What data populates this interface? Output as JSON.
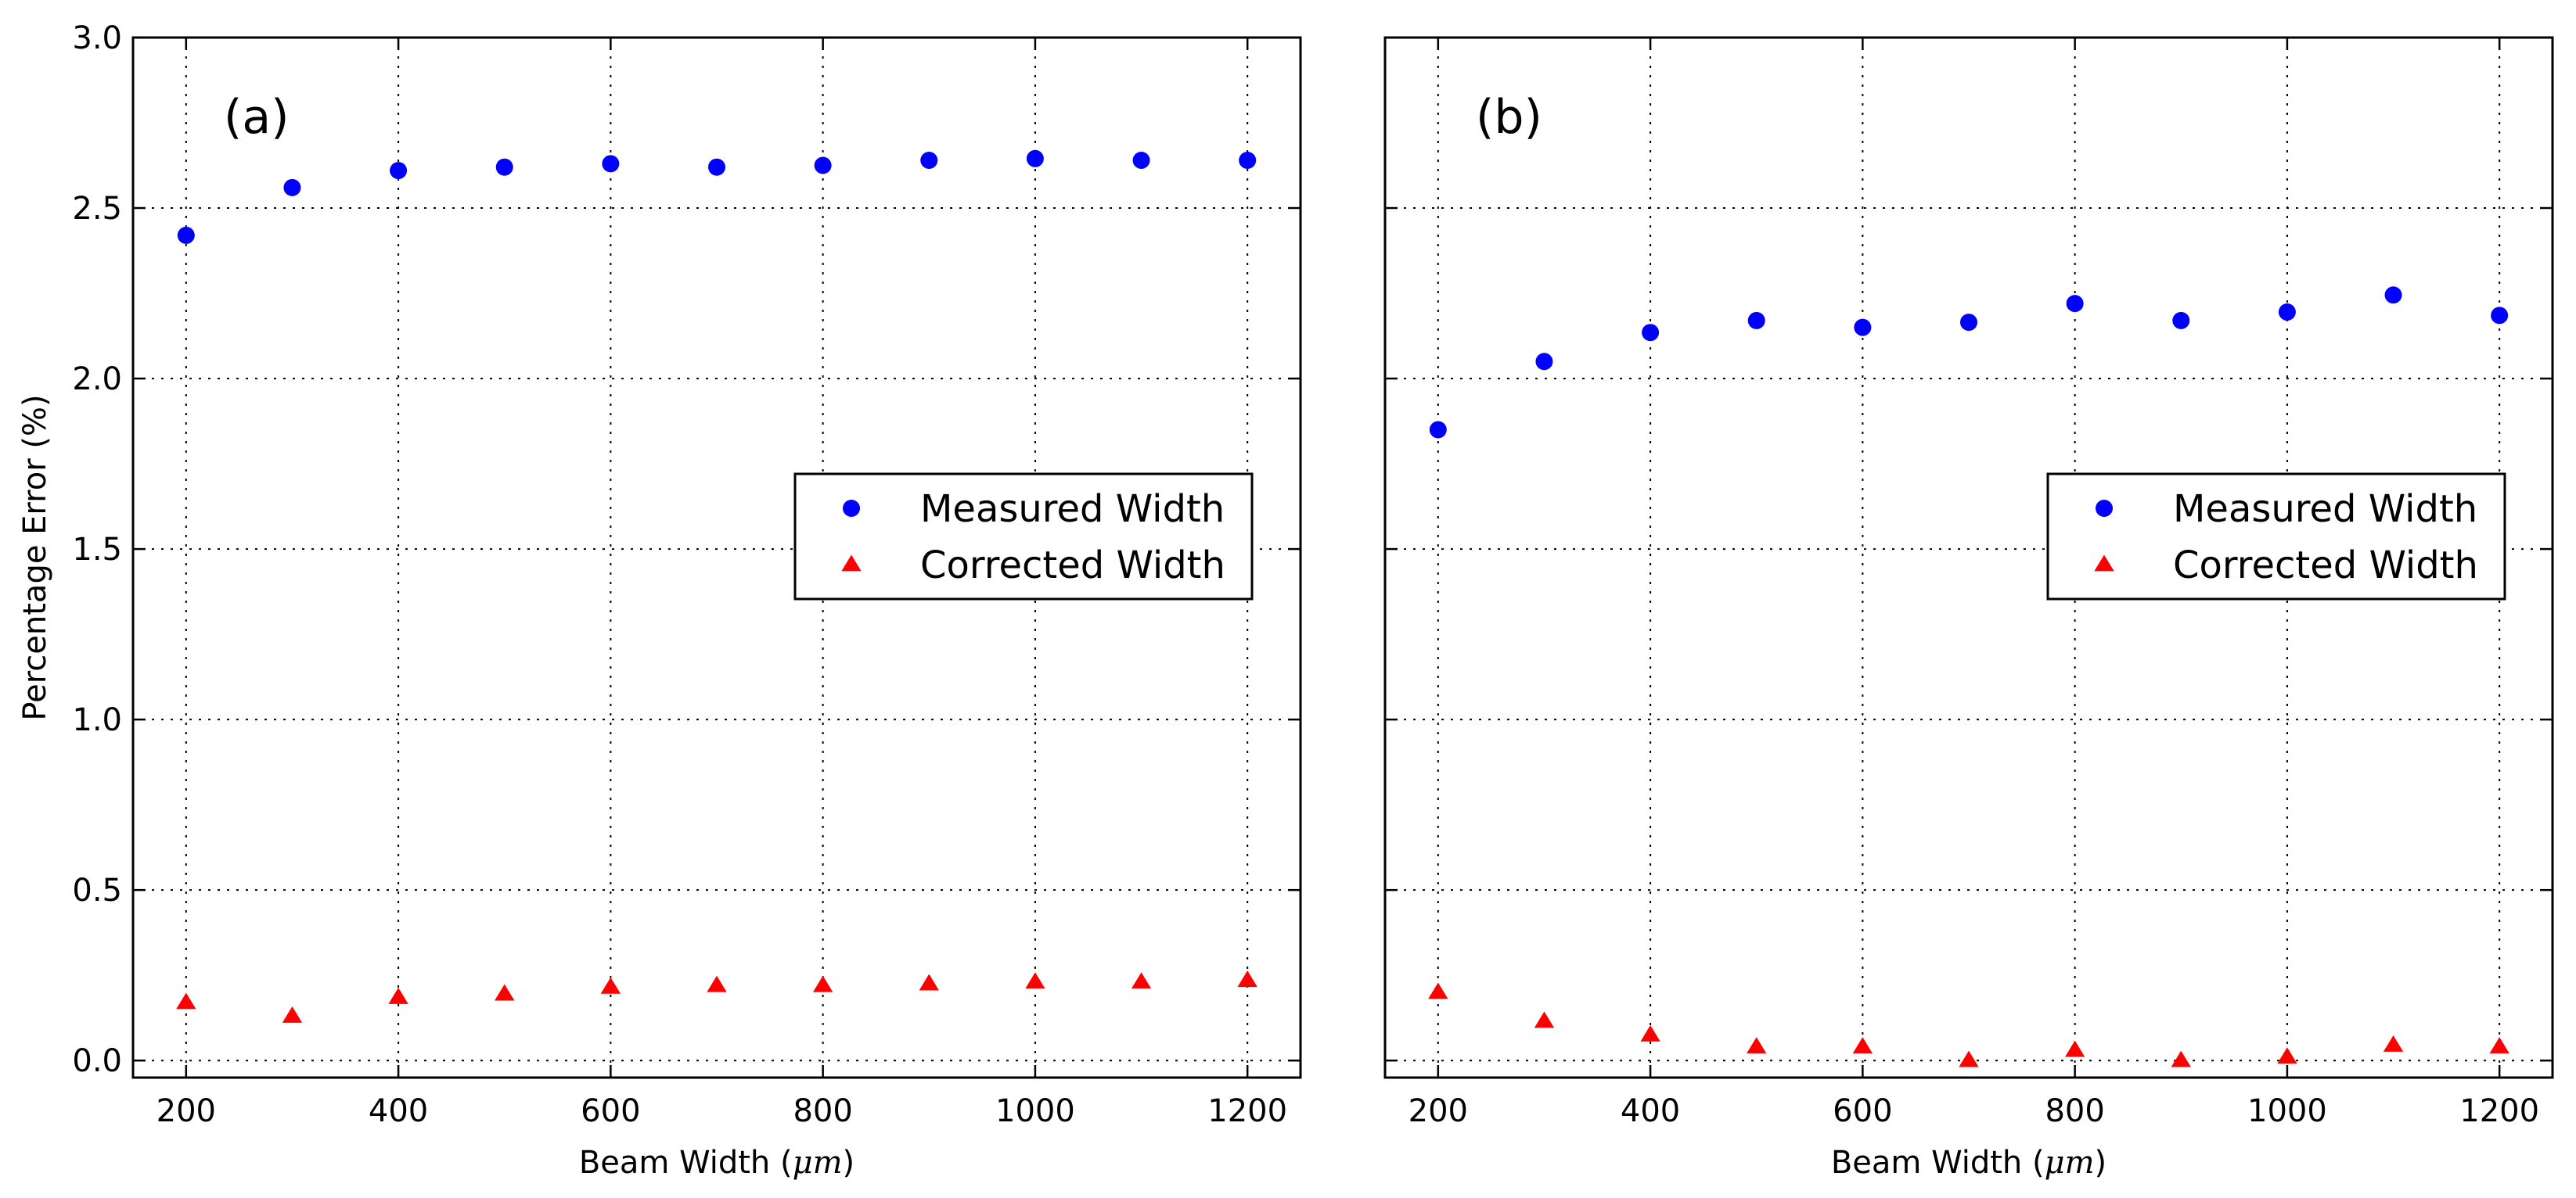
{
  "chart_data": [
    {
      "type": "scatter",
      "panel_label": "(a)",
      "xlabel_prefix": "Beam Width (",
      "xlabel_unit": "μm",
      "xlabel_suffix": ")",
      "ylabel": "Percentage Error (%)",
      "xlim": [
        150,
        1250
      ],
      "ylim": [
        -0.05,
        3.0
      ],
      "xticks": [
        200,
        400,
        600,
        800,
        1000,
        1200
      ],
      "yticks": [
        0.0,
        0.5,
        1.0,
        1.5,
        2.0,
        2.5,
        3.0
      ],
      "ytick_labels": [
        "0.0",
        "0.5",
        "1.0",
        "1.5",
        "2.0",
        "2.5",
        "3.0"
      ],
      "show_yticklabels": true,
      "grid": true,
      "legend_position": "center-right",
      "series": [
        {
          "name": "Measured Width",
          "marker": "circle",
          "color": "#0000ff",
          "x": [
            200,
            300,
            400,
            500,
            600,
            700,
            800,
            900,
            1000,
            1100,
            1200
          ],
          "y": [
            2.42,
            2.56,
            2.61,
            2.62,
            2.63,
            2.62,
            2.625,
            2.64,
            2.645,
            2.64,
            2.64
          ]
        },
        {
          "name": "Corrected Width",
          "marker": "triangle",
          "color": "#ff0000",
          "x": [
            200,
            300,
            400,
            500,
            600,
            700,
            800,
            900,
            1000,
            1100,
            1200
          ],
          "y": [
            0.17,
            0.13,
            0.185,
            0.195,
            0.215,
            0.22,
            0.22,
            0.225,
            0.23,
            0.23,
            0.235
          ]
        }
      ]
    },
    {
      "type": "scatter",
      "panel_label": "(b)",
      "xlabel_prefix": "Beam Width (",
      "xlabel_unit": "μm",
      "xlabel_suffix": ")",
      "ylabel": "",
      "xlim": [
        150,
        1250
      ],
      "ylim": [
        -0.05,
        3.0
      ],
      "xticks": [
        200,
        400,
        600,
        800,
        1000,
        1200
      ],
      "yticks": [
        0.0,
        0.5,
        1.0,
        1.5,
        2.0,
        2.5,
        3.0
      ],
      "ytick_labels": [
        "0.0",
        "0.5",
        "1.0",
        "1.5",
        "2.0",
        "2.5",
        "3.0"
      ],
      "show_yticklabels": false,
      "grid": true,
      "legend_position": "center-right",
      "series": [
        {
          "name": "Measured Width",
          "marker": "circle",
          "color": "#0000ff",
          "x": [
            200,
            300,
            400,
            500,
            600,
            700,
            800,
            900,
            1000,
            1100,
            1200
          ],
          "y": [
            1.85,
            2.05,
            2.135,
            2.17,
            2.15,
            2.165,
            2.22,
            2.17,
            2.195,
            2.245,
            2.185
          ]
        },
        {
          "name": "Corrected Width",
          "marker": "triangle",
          "color": "#ff0000",
          "x": [
            200,
            300,
            400,
            500,
            600,
            700,
            800,
            900,
            1000,
            1100,
            1200
          ],
          "y": [
            0.2,
            0.115,
            0.075,
            0.04,
            0.04,
            0.0,
            0.03,
            0.0,
            0.01,
            0.045,
            0.04
          ]
        }
      ]
    }
  ]
}
